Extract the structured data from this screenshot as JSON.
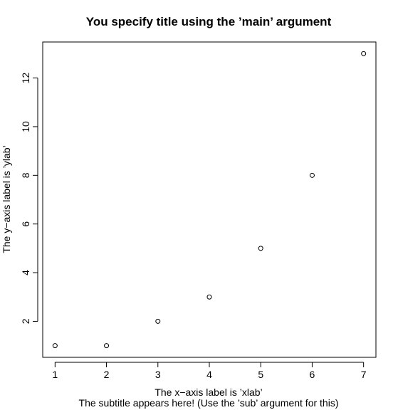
{
  "chart_data": {
    "type": "scatter",
    "title": "You specify title using the ’main’ argument",
    "subtitle": "The subtitle appears here! (Use the ’sub’ argument for this)",
    "xlabel": "The x−axis label is ’xlab’",
    "ylabel": "The y−axis label is ’ylab’",
    "x": [
      1,
      2,
      3,
      4,
      5,
      6,
      7
    ],
    "y": [
      1,
      1,
      2,
      3,
      5,
      8,
      13
    ],
    "xlim": [
      0.76,
      7.24
    ],
    "ylim": [
      0.52,
      13.48
    ],
    "xticks": [
      1,
      2,
      3,
      4,
      5,
      6,
      7
    ],
    "yticks": [
      2,
      4,
      6,
      8,
      10,
      12
    ],
    "grid": false,
    "legend": "none",
    "marker": "open-circle"
  }
}
